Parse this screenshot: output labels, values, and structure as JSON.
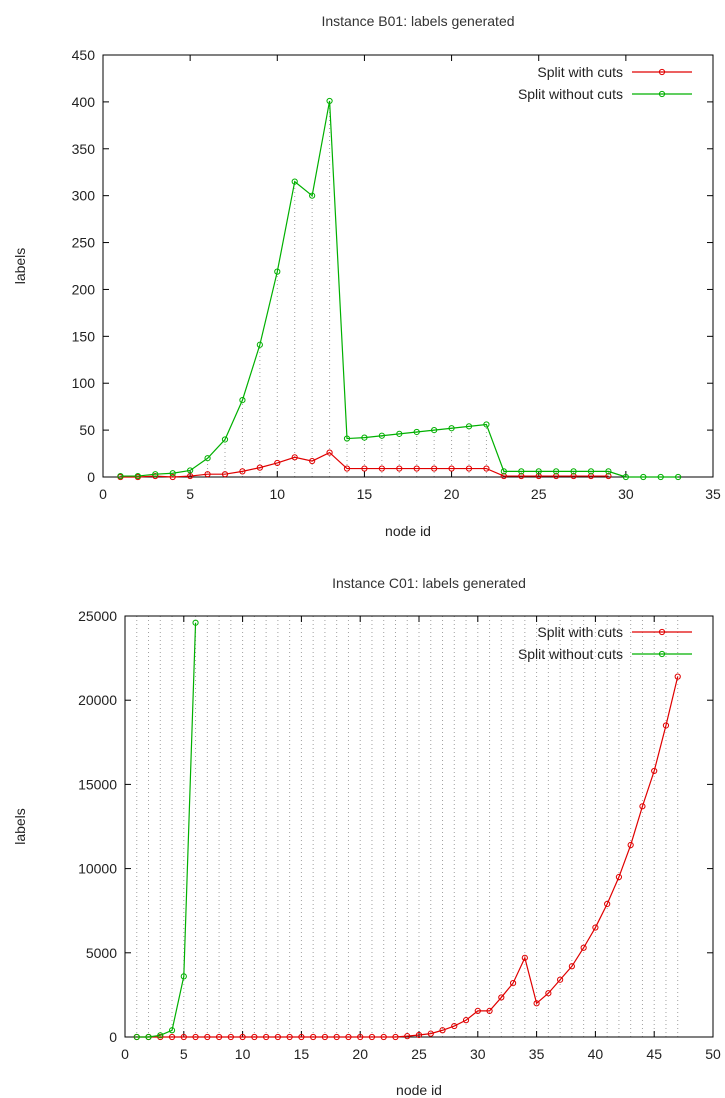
{
  "chart_data": [
    {
      "type": "line",
      "title": "Instance B01: labels generated",
      "xlabel": "node id",
      "ylabel": "labels",
      "xlim": [
        0,
        35
      ],
      "ylim": [
        0,
        450
      ],
      "xticks": [
        0,
        5,
        10,
        15,
        20,
        25,
        30,
        35
      ],
      "yticks": [
        0,
        50,
        100,
        150,
        200,
        250,
        300,
        350,
        400,
        450
      ],
      "grid": "vertical dotted droplines",
      "legend_position": "top-right",
      "series": [
        {
          "name": "Split with cuts",
          "color": "#e00000",
          "x": [
            1,
            2,
            3,
            4,
            5,
            6,
            7,
            8,
            9,
            10,
            11,
            12,
            13,
            14,
            15,
            16,
            17,
            18,
            19,
            20,
            21,
            22,
            23,
            24,
            25,
            26,
            27,
            28,
            29
          ],
          "y": [
            0,
            0,
            1,
            0,
            1,
            3,
            3,
            6,
            10,
            15,
            21,
            17,
            26,
            9,
            9,
            9,
            9,
            9,
            9,
            9,
            9,
            9,
            1,
            1,
            1,
            1,
            1,
            1,
            1
          ]
        },
        {
          "name": "Split without cuts",
          "color": "#00b000",
          "x": [
            1,
            2,
            3,
            4,
            5,
            6,
            7,
            8,
            9,
            10,
            11,
            12,
            13,
            14,
            15,
            16,
            17,
            18,
            19,
            20,
            21,
            22,
            23,
            24,
            25,
            26,
            27,
            28,
            29,
            30,
            31,
            32,
            33
          ],
          "y": [
            1,
            1,
            3,
            4,
            7,
            20,
            40,
            82,
            141,
            219,
            315,
            300,
            401,
            41,
            42,
            44,
            46,
            48,
            50,
            52,
            54,
            56,
            6,
            6,
            6,
            6,
            6,
            6,
            6,
            0,
            0,
            0,
            0
          ]
        }
      ]
    },
    {
      "type": "line",
      "title": "Instance C01: labels generated",
      "xlabel": "node id",
      "ylabel": "labels",
      "xlim": [
        0,
        50
      ],
      "ylim": [
        0,
        25000
      ],
      "xticks": [
        0,
        5,
        10,
        15,
        20,
        25,
        30,
        35,
        40,
        45,
        50
      ],
      "yticks": [
        0,
        5000,
        10000,
        15000,
        20000,
        25000
      ],
      "grid": "vertical dotted droplines",
      "legend_position": "top-right",
      "series": [
        {
          "name": "Split with cuts",
          "color": "#e00000",
          "x": [
            1,
            2,
            3,
            4,
            5,
            6,
            7,
            8,
            9,
            10,
            11,
            12,
            13,
            14,
            15,
            16,
            17,
            18,
            19,
            20,
            21,
            22,
            23,
            24,
            25,
            26,
            27,
            28,
            29,
            30,
            31,
            32,
            33,
            34,
            35,
            36,
            37,
            38,
            39,
            40,
            41,
            42,
            43,
            44,
            45,
            46,
            47
          ],
          "y": [
            0,
            0,
            0,
            0,
            0,
            0,
            0,
            0,
            0,
            0,
            0,
            0,
            0,
            0,
            0,
            0,
            0,
            0,
            0,
            0,
            0,
            0,
            0,
            50,
            120,
            200,
            400,
            650,
            1000,
            1550,
            1550,
            2350,
            3200,
            4700,
            2000,
            2600,
            3400,
            4200,
            5300,
            6500,
            7900,
            9500,
            11400,
            13700,
            15800,
            18500,
            21400
          ]
        },
        {
          "name": "Split without cuts",
          "color": "#00b000",
          "x": [
            1,
            2,
            3,
            4,
            5,
            6
          ],
          "y": [
            0,
            0,
            100,
            400,
            3600,
            24600
          ]
        }
      ]
    }
  ]
}
